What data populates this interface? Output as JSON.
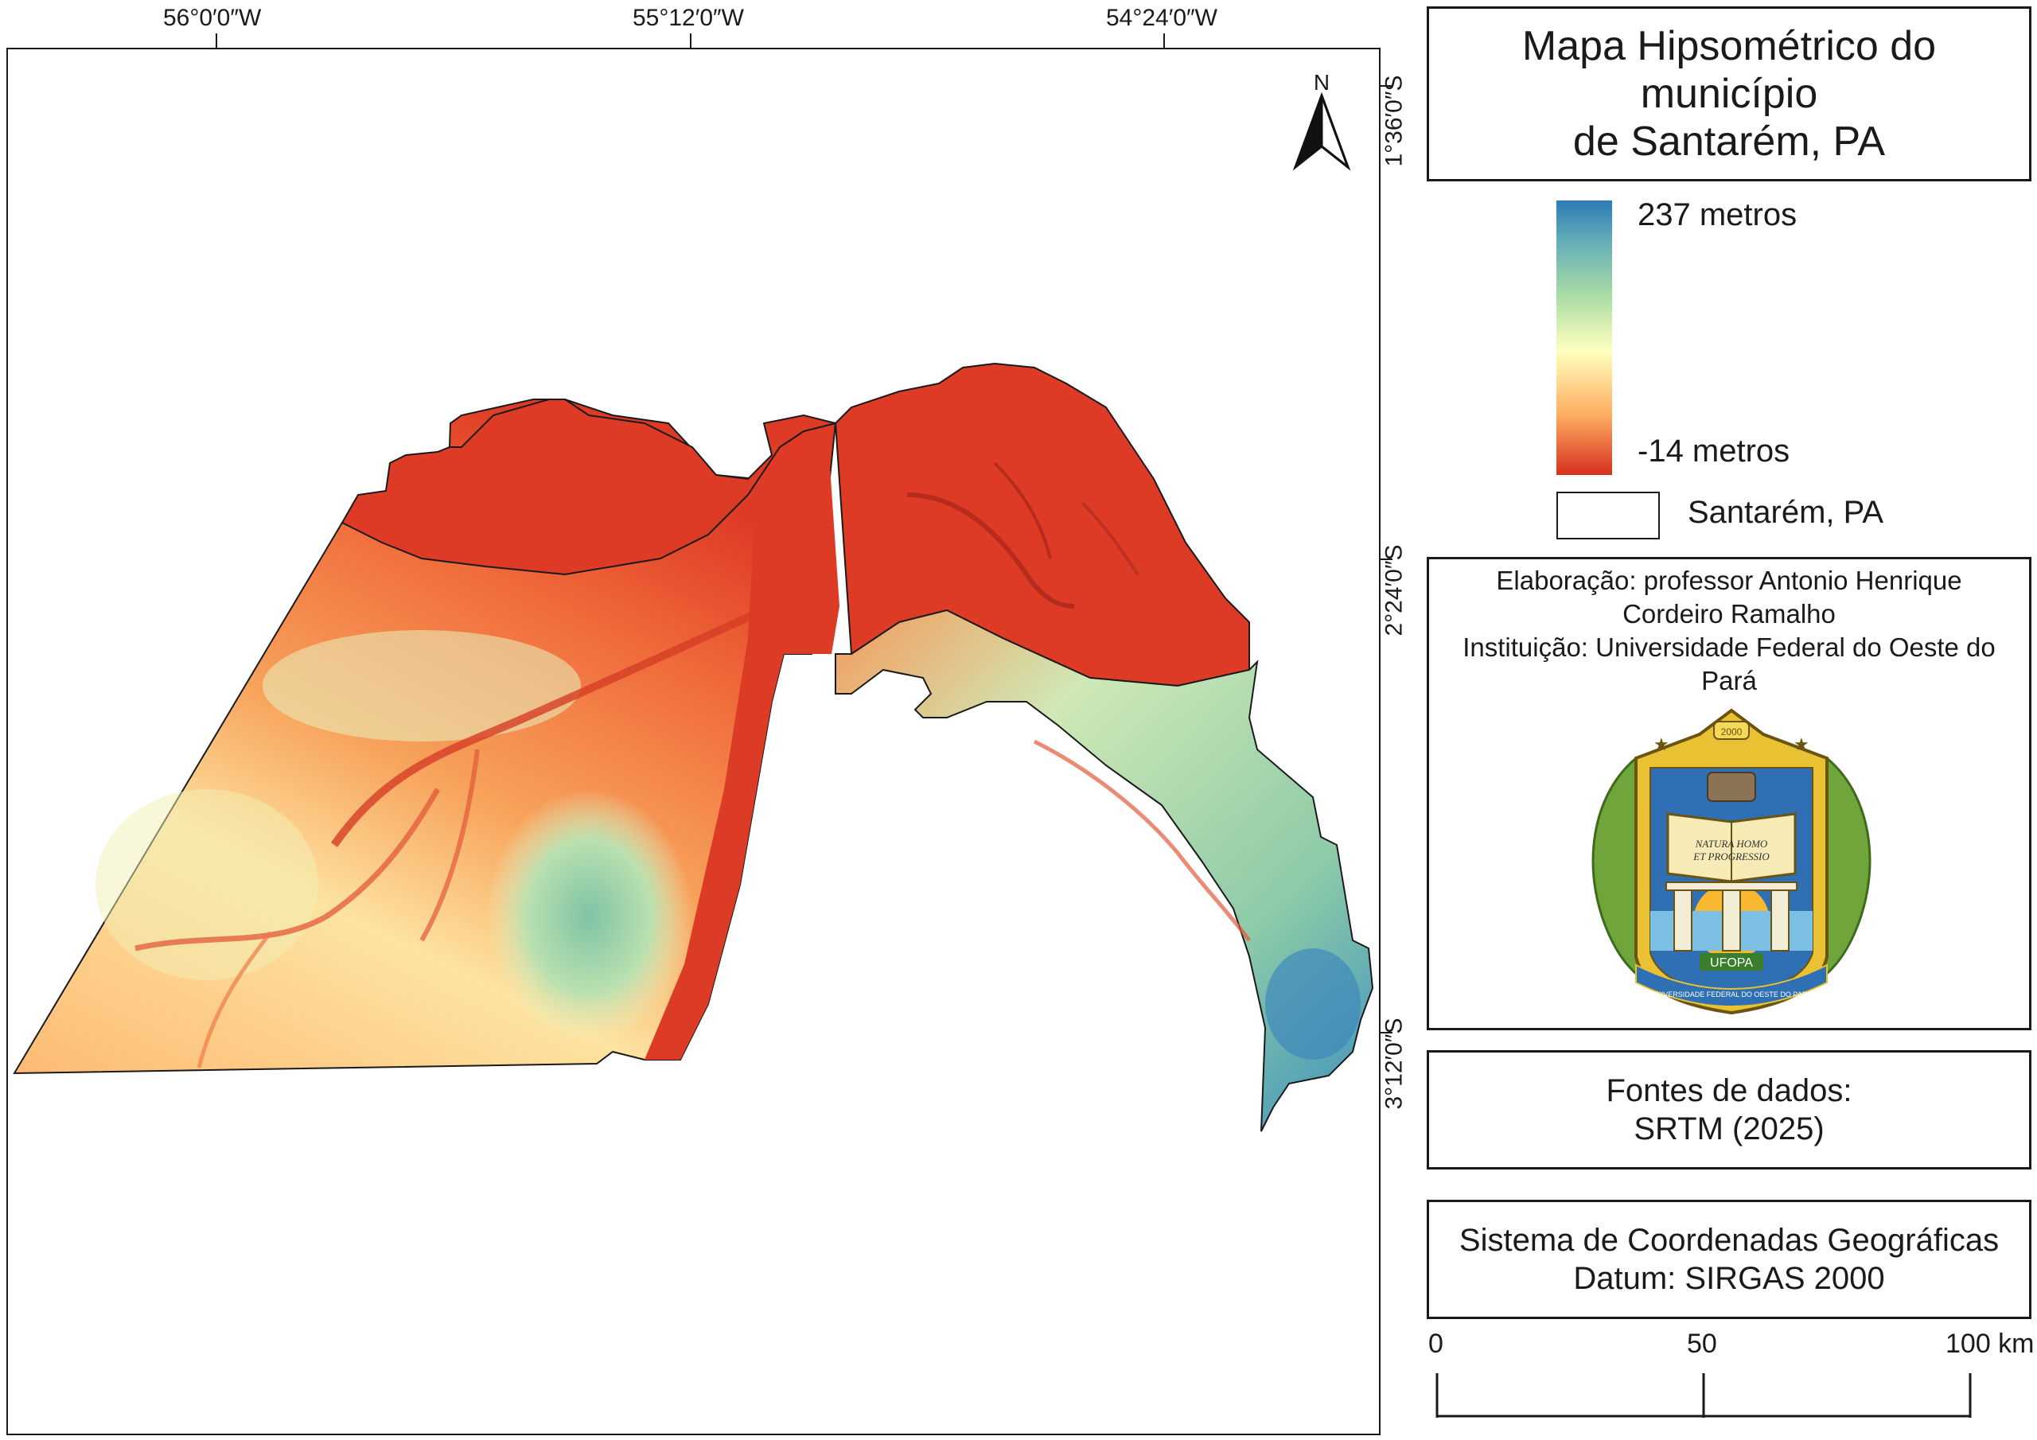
{
  "title": {
    "line1": "Mapa Hipsométrico do município",
    "line2": "de Santarém, PA"
  },
  "coordinates": {
    "top": [
      "56°0′0″W",
      "55°12′0″W",
      "54°24′0″W"
    ],
    "right": [
      "1°36′0″S",
      "2°24′0″S",
      "3°12′0″S"
    ]
  },
  "north_arrow": {
    "label": "N"
  },
  "legend": {
    "max_label": "237 metros",
    "min_label": "-14 metros",
    "boundary_label": "Santarém, PA",
    "colors": [
      "#2c7bb6",
      "#abdda4",
      "#ffffbf",
      "#fdae61",
      "#d7301f"
    ]
  },
  "credits": {
    "line1": "Elaboração: professor Antonio Henrique",
    "line2": "Cordeiro Ramalho",
    "line3": "Instituição: Universidade Federal do Oeste do",
    "line4": "Pará"
  },
  "logo": {
    "year": "2000",
    "motto1": "NATURA HOMO",
    "motto2": "ET PROGRESSIO",
    "name": "UFOPA",
    "ribbon": "UNIVERSIDADE FEDERAL DO OESTE DO PARÁ"
  },
  "sources": {
    "line1": "Fontes de dados:",
    "line2": "SRTM (2025)"
  },
  "crs": {
    "line1": "Sistema de Coordenadas Geográficas",
    "line2": "Datum: SIRGAS 2000"
  },
  "scale_bar": {
    "labels": [
      "0",
      "50",
      "100 km"
    ]
  }
}
